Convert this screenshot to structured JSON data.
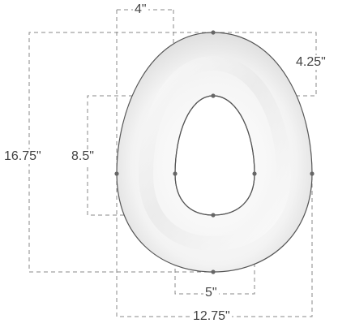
{
  "diagram": {
    "subject": "potty training seat",
    "colors": {
      "outline": "#555555",
      "dimension_line": "#8a8a8a",
      "label_text": "#444444",
      "seat_shadow": "#d7d7d7"
    },
    "dimensions": {
      "inner_opening_width": "5\"",
      "inner_opening_height": "8.5\"",
      "outer_width": "12.75\"",
      "outer_height": "16.75\"",
      "top_rim_width": "4\"",
      "top_rim_height": "4.25\""
    }
  }
}
